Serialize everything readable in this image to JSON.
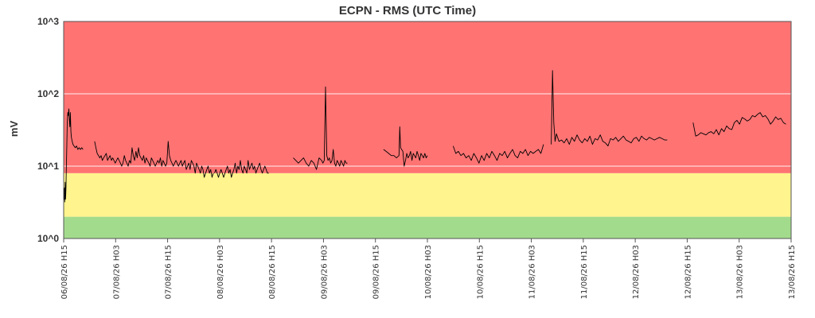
{
  "chart_data": {
    "type": "line",
    "title": "ECPN - RMS (UTC Time)",
    "ylabel": "mV",
    "yscale": "log",
    "ylim": [
      1,
      1000
    ],
    "y_tick_labels": [
      "10^0",
      "10^1",
      "10^2",
      "10^3"
    ],
    "y_tick_values": [
      1,
      10,
      100,
      1000
    ],
    "x_tick_labels": [
      "06/08/26 H15",
      "07/08/26 H03",
      "07/08/26 H15",
      "08/08/26 H03",
      "08/08/26 H15",
      "09/08/26 H03",
      "09/08/26 H15",
      "10/08/26 H03",
      "10/08/26 H15",
      "11/08/26 H03",
      "11/08/26 H15",
      "12/08/26 H03",
      "12/08/26 H15",
      "13/08/26 H03",
      "13/08/26 H15"
    ],
    "grid": true,
    "bands": [
      {
        "from": 1,
        "to": 2,
        "color": "#A3DB8D"
      },
      {
        "from": 2,
        "to": 8,
        "color": "#FFF48D"
      },
      {
        "from": 8,
        "to": 1000,
        "color": "#FF7373"
      }
    ],
    "line_color": "#000000",
    "series": [
      {
        "segments": [
          {
            "x": [
              0,
              0.1,
              0.2,
              0.3,
              0.4,
              0.5,
              0.6,
              0.7,
              0.8,
              0.9,
              1.0,
              1.2,
              1.4,
              1.6,
              1.8,
              2.0,
              2.2,
              2.4,
              2.6,
              2.8,
              3.0,
              3.3,
              3.6,
              4.0,
              4.5,
              5.0,
              5.5,
              6.0,
              6.5,
              7.0,
              7.5
            ],
            "y": [
              4.5,
              4,
              3.5,
              5,
              3.2,
              3.8,
              6,
              3.5,
              4,
              5,
              8,
              18,
              40,
              55,
              50,
              62,
              45,
              35,
              55,
              30,
              25,
              22,
              20,
              19,
              18,
              19,
              17,
              18,
              17,
              18,
              17
            ]
          },
          {
            "x": [
              12.0,
              12.5,
              13.0,
              13.5,
              14.0,
              14.5,
              15.0,
              15.5,
              16.0,
              16.5,
              17.0,
              17.5,
              18.0,
              18.5,
              19.0,
              19.5,
              20.0,
              20.5,
              21.0,
              21.5,
              22.0,
              22.5,
              23.0,
              23.5,
              24.0,
              24.5,
              25.0,
              25.5,
              26.0,
              26.5,
              27.0,
              27.5,
              28.0,
              28.5,
              29.0,
              29.5,
              30.0,
              30.5,
              31.0,
              31.5,
              32.0,
              32.5,
              33.0,
              33.5,
              34.0,
              34.5,
              35.0,
              35.5,
              36.0,
              36.5,
              37.0,
              37.5,
              38.0,
              38.5,
              39.0,
              39.5,
              40.0,
              40.5,
              41.0,
              41.5,
              42.0,
              42.5,
              43.0,
              43.5,
              44.0,
              44.5,
              45.0,
              45.5,
              46.0,
              46.5,
              47.0,
              47.5,
              48.0,
              48.5,
              49.0,
              49.5,
              50.0,
              50.5,
              51.0,
              51.5,
              52.0,
              52.5,
              53.0,
              53.5,
              54.0,
              54.5,
              55.0,
              55.5,
              56.0,
              56.5,
              57.0,
              57.5,
              58.0
            ],
            "y": [
              22,
              18,
              15,
              14,
              13,
              14,
              12,
              13,
              14,
              15,
              12,
              13,
              14,
              12,
              13,
              12,
              11,
              12,
              13,
              12,
              11,
              10,
              11,
              14,
              12,
              11,
              10,
              12,
              11,
              18,
              14,
              12,
              16,
              13,
              18,
              14,
              13,
              12,
              14,
              11,
              13,
              12,
              11,
              10,
              13,
              12,
              11,
              10,
              11,
              12,
              11,
              13,
              10,
              12,
              11,
              10,
              11,
              22,
              14,
              12,
              11,
              10,
              11,
              12,
              11,
              10,
              11,
              12,
              10,
              11,
              12,
              9,
              10,
              11,
              9,
              12,
              11,
              10,
              8,
              11,
              10,
              9,
              8,
              10,
              9,
              7,
              8,
              9,
              10,
              8,
              9,
              7,
              8
            ]
          },
          {
            "x": [
              58.5,
              59.0,
              59.5,
              60.0,
              60.5,
              61.0,
              61.5,
              62.0,
              62.5,
              63.0,
              63.5,
              64.0,
              64.5,
              65.0,
              65.5,
              66.0,
              66.5,
              67.0,
              67.5,
              68.0,
              68.5,
              69.0,
              69.5,
              70.0,
              70.5,
              71.0,
              71.5,
              72.0,
              72.5,
              73.0,
              73.5,
              74.0,
              74.5,
              75.0,
              75.5,
              76.0,
              76.5,
              77.0,
              77.5,
              78.0,
              78.5,
              79.0,
              79.5
            ],
            "y": [
              8,
              9,
              8,
              7,
              8,
              9,
              8,
              7,
              8,
              9,
              10,
              8,
              9,
              7,
              8,
              9,
              11,
              8,
              10,
              9,
              12,
              9,
              8,
              10,
              9,
              8,
              12,
              9,
              10,
              11,
              9,
              10,
              8,
              9,
              10,
              11,
              9,
              8,
              9,
              10,
              9,
              8,
              8
            ]
          },
          {
            "x": [
              89,
              90,
              91,
              92,
              93,
              94,
              95,
              96,
              97,
              98,
              99,
              100,
              100.5,
              101,
              101.5,
              102,
              102.5,
              103,
              103.5,
              104,
              104.5,
              105,
              105.5,
              106,
              106.5,
              107,
              107.5,
              108,
              108.5,
              109,
              109.5,
              110
            ],
            "y": [
              13,
              12,
              11,
              12,
              13,
              11,
              10,
              12,
              11,
              9,
              13,
              12,
              11,
              12,
              125,
              14,
              12,
              13,
              11,
              12,
              17,
              11,
              10,
              12,
              11,
              10,
              12,
              11,
              10,
              12,
              11,
              11
            ]
          },
          {
            "x": [
              124,
              125,
              126,
              127,
              128,
              129,
              130,
              130.3,
              130.6,
              131,
              131.5,
              132,
              132.5,
              133,
              133.5,
              134,
              134.5,
              135,
              135.5,
              136,
              136.5,
              137,
              137.5,
              138,
              138.5,
              139,
              139.5,
              140,
              140.5,
              141
            ],
            "y": [
              17,
              16,
              15,
              14,
              14,
              13,
              14,
              35,
              18,
              17,
              16,
              10,
              12,
              15,
              13,
              14,
              16,
              12,
              15,
              14,
              13,
              16,
              14,
              12,
              15,
              14,
              13,
              15,
              13,
              14
            ]
          },
          {
            "x": [
              151,
              152,
              153,
              154,
              155,
              156,
              157,
              158,
              159,
              160,
              161,
              162,
              163,
              164,
              165,
              166,
              167,
              168,
              169,
              170,
              171,
              172,
              173,
              174,
              175,
              176,
              177,
              178,
              179,
              180,
              181,
              182,
              183,
              184,
              185,
              186
            ],
            "y": [
              19,
              15,
              16,
              14,
              15,
              13,
              14,
              12,
              15,
              13,
              11,
              14,
              12,
              15,
              13,
              16,
              14,
              12,
              15,
              14,
              16,
              13,
              15,
              17,
              14,
              13,
              16,
              15,
              17,
              14,
              16,
              15,
              16,
              17,
              15,
              20
            ]
          },
          {
            "x": [
              189,
              189.5,
              190,
              190.5,
              191,
              192,
              193,
              194,
              195,
              196,
              197,
              198,
              199,
              200,
              201,
              202,
              203,
              204,
              205,
              206,
              207,
              208,
              209,
              210,
              211,
              212,
              213,
              214,
              215,
              216,
              217,
              218,
              219,
              220,
              221,
              222,
              223,
              224,
              225,
              226,
              227,
              228,
              229,
              230,
              231,
              232,
              233,
              234
            ],
            "y": [
              20,
              210,
              40,
              22,
              28,
              22,
              23,
              21,
              24,
              20,
              25,
              22,
              27,
              23,
              21,
              24,
              22,
              26,
              20,
              24,
              23,
              27,
              22,
              21,
              19,
              24,
              23,
              25,
              22,
              24,
              26,
              23,
              22,
              21,
              24,
              25,
              22,
              26,
              24,
              23,
              25,
              24,
              23,
              24,
              25,
              24,
              23,
              23
            ]
          },
          {
            "x": [
              244,
              245,
              246,
              247,
              248,
              249,
              250,
              251,
              252,
              253,
              254,
              255,
              256,
              257,
              258,
              259,
              260,
              261,
              262,
              263,
              264,
              265,
              266,
              267,
              268,
              269,
              270,
              271,
              272,
              273,
              274,
              275,
              276,
              277,
              278,
              279,
              280
            ],
            "y": [
              40,
              26,
              27,
              29,
              28,
              27,
              29,
              30,
              28,
              32,
              27,
              33,
              30,
              36,
              33,
              32,
              40,
              43,
              38,
              47,
              45,
              42,
              44,
              50,
              48,
              52,
              55,
              48,
              50,
              45,
              38,
              42,
              48,
              44,
              46,
              40,
              38
            ]
          }
        ]
      }
    ],
    "x_domain": [
      0,
      282
    ]
  }
}
